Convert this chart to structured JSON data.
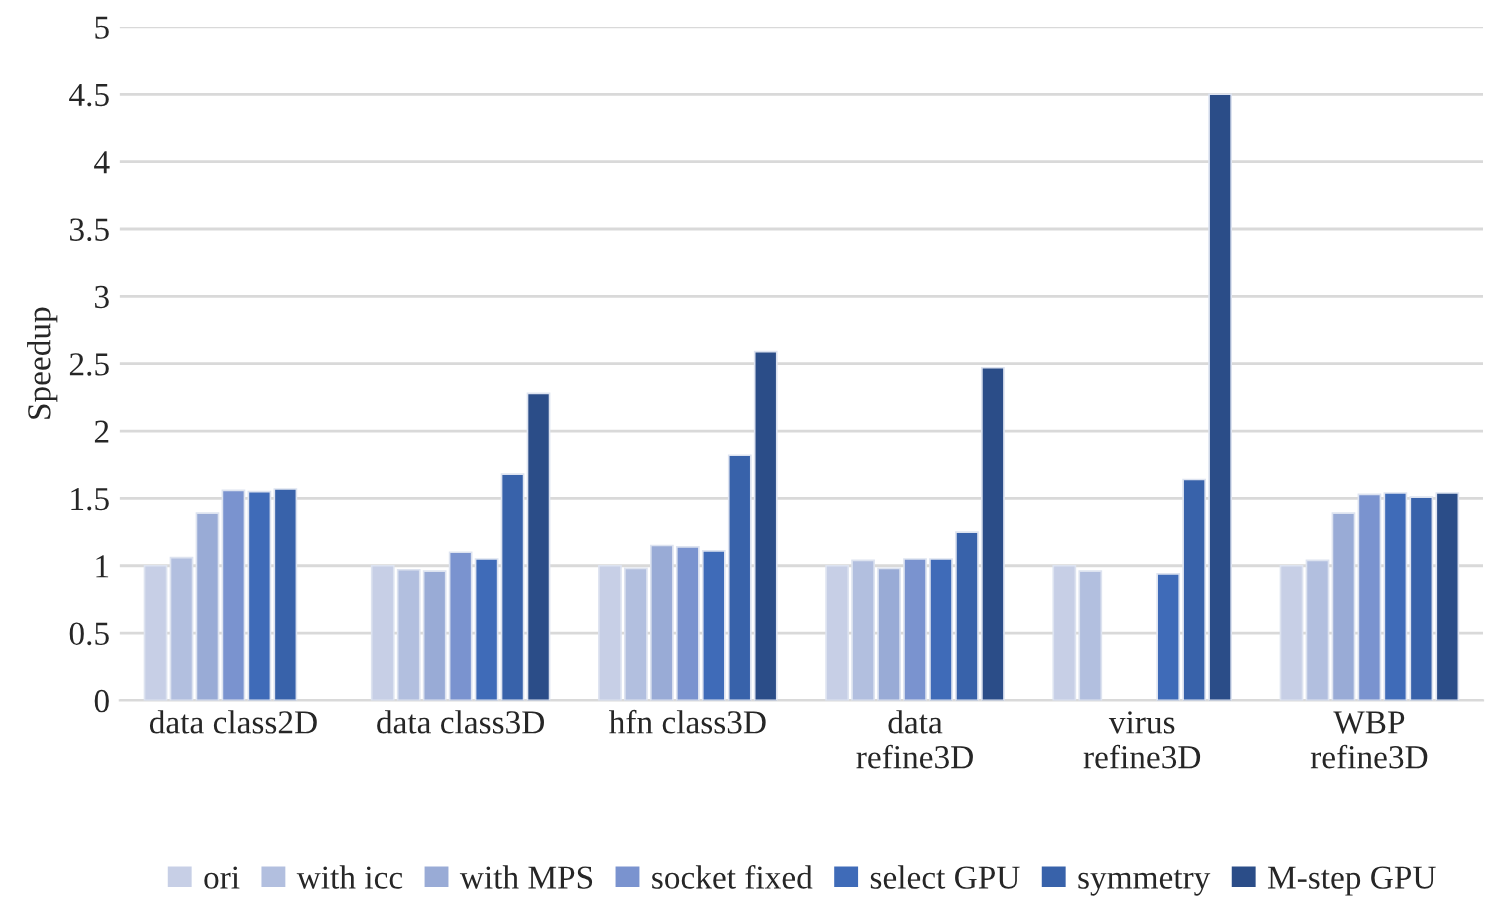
{
  "chart_data": {
    "type": "bar",
    "ylabel": "Speedup",
    "categories": [
      "data class2D",
      "data class3D",
      "hfn class3D",
      "data\nrefine3D",
      "virus\nrefine3D",
      "WBP\nrefine3D"
    ],
    "series": [
      {
        "name": "ori",
        "color": "#c7cfe6",
        "values": [
          1.0,
          1.0,
          1.0,
          1.0,
          1.0,
          1.0
        ]
      },
      {
        "name": "with icc",
        "color": "#b2bfdf",
        "values": [
          1.06,
          0.97,
          0.98,
          1.04,
          0.96,
          1.04
        ]
      },
      {
        "name": "with MPS",
        "color": "#99abd6",
        "values": [
          1.39,
          0.96,
          1.15,
          0.98,
          null,
          1.39
        ]
      },
      {
        "name": "socket fixed",
        "color": "#7a93cf",
        "values": [
          1.56,
          1.1,
          1.14,
          1.05,
          null,
          1.53
        ]
      },
      {
        "name": "select GPU",
        "color": "#3f6bb8",
        "values": [
          1.55,
          1.05,
          1.11,
          1.05,
          0.94,
          1.54
        ]
      },
      {
        "name": "symmetry",
        "color": "#3862aa",
        "values": [
          1.57,
          1.68,
          1.82,
          1.25,
          1.64,
          1.51
        ]
      },
      {
        "name": "M-step GPU",
        "color": "#2b4d88",
        "values": [
          null,
          2.28,
          2.59,
          2.47,
          4.5,
          1.54
        ]
      }
    ],
    "ylim": [
      0,
      5
    ],
    "yticks": [
      0,
      0.5,
      1,
      1.5,
      2,
      2.5,
      3,
      3.5,
      4,
      4.5,
      5
    ],
    "grid": "y",
    "legend": "bottom"
  }
}
